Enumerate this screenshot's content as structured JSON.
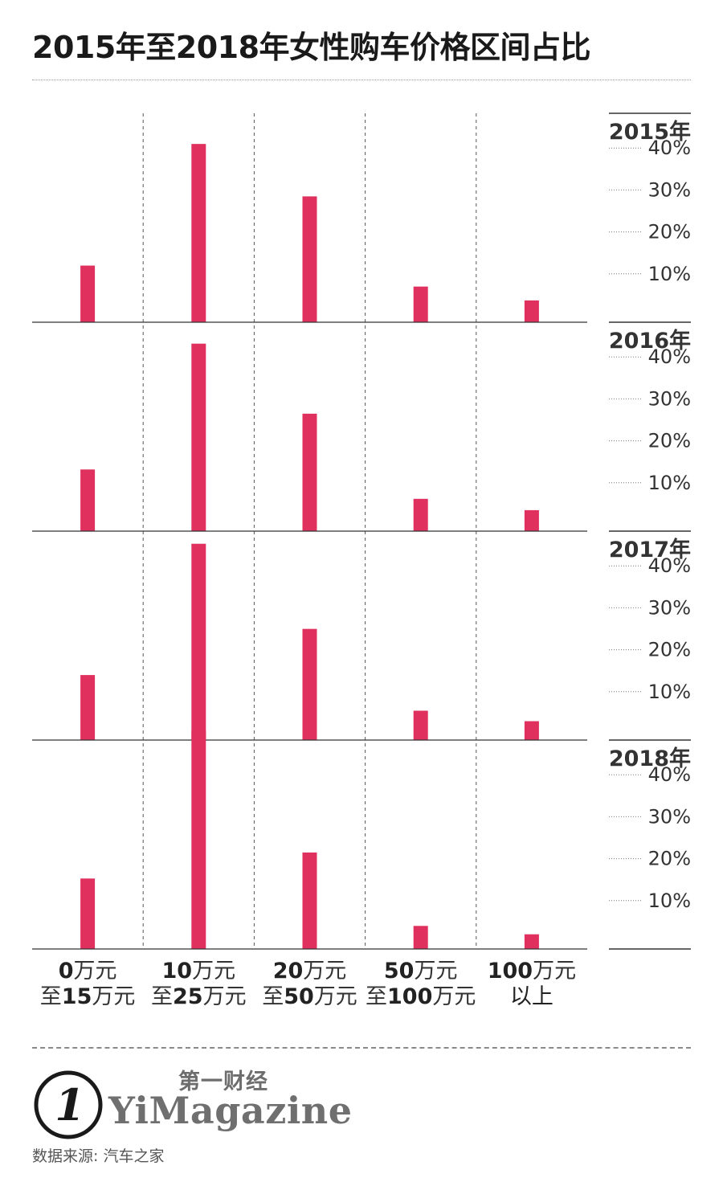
{
  "title": "2015年至2018年女性购车价格区间占比",
  "chart_data": {
    "type": "bar",
    "categories": [
      "0万元至15万元",
      "10万元至25万元",
      "20万元至50万元",
      "50万元至100万元",
      "100万元以上"
    ],
    "category_labels": [
      {
        "line1_num": "0",
        "line1_unit": "万元",
        "line2_pre": "至",
        "line2_num": "15",
        "line2_unit": "万元"
      },
      {
        "line1_num": "10",
        "line1_unit": "万元",
        "line2_pre": "至",
        "line2_num": "25",
        "line2_unit": "万元"
      },
      {
        "line1_num": "20",
        "line1_unit": "万元",
        "line2_pre": "至",
        "line2_num": "50",
        "line2_unit": "万元"
      },
      {
        "line1_num": "50",
        "line1_unit": "万元",
        "line2_pre": "至",
        "line2_num": "100",
        "line2_unit": "万元"
      },
      {
        "line1_num": "100",
        "line1_unit": "万元",
        "line2_pre": "",
        "line2_num": "以上",
        "line2_unit": ""
      }
    ],
    "series": [
      {
        "name": "2015年",
        "values": [
          13.5,
          42.5,
          30,
          8.5,
          5.2
        ]
      },
      {
        "name": "2016年",
        "values": [
          14.7,
          44.7,
          28,
          7.7,
          5
        ]
      },
      {
        "name": "2017年",
        "values": [
          15.5,
          46.8,
          26.5,
          7,
          4.5
        ]
      },
      {
        "name": "2018年",
        "values": [
          16.8,
          52,
          23,
          5.5,
          3.5
        ]
      }
    ],
    "y_ticks": [
      "10%",
      "20%",
      "30%",
      "40%"
    ],
    "y_tick_values": [
      10,
      20,
      30,
      40
    ],
    "ylim": [
      0,
      50
    ],
    "bar_color": "#e0315e",
    "grid": "vertical dashed separators between categories"
  },
  "logo_numeral": "1",
  "brand_cn": "第一财经",
  "brand_en": "YiMagazine",
  "source": "数据来源: 汽车之家"
}
